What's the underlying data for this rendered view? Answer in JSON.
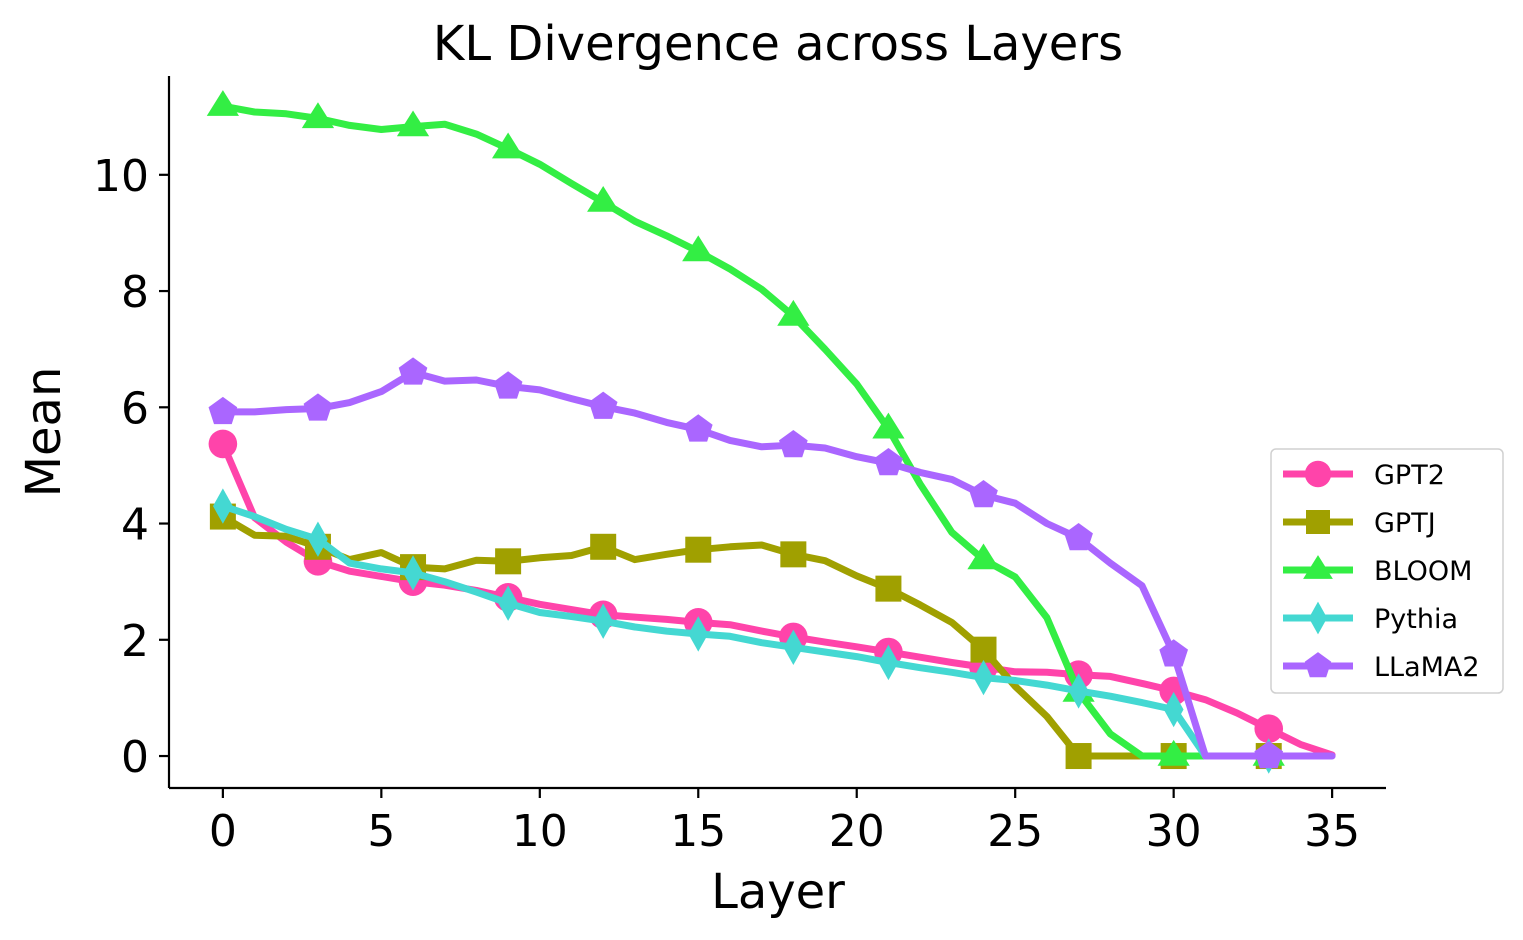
{
  "chart_data": {
    "type": "line",
    "title": "KL Divergence across Layers",
    "xlabel": "Layer",
    "ylabel": "Mean",
    "xlim": [
      -1.7,
      36.7
    ],
    "ylim": [
      -0.55,
      11.7
    ],
    "xticks": [
      0,
      5,
      10,
      15,
      20,
      25,
      30,
      35
    ],
    "yticks": [
      0,
      2,
      4,
      6,
      8,
      10
    ],
    "grid": false,
    "legend_position": "center-right",
    "series": [
      {
        "name": "GPT2",
        "color": "#ff44aa",
        "marker": "circle",
        "x": [
          0,
          1,
          2,
          3,
          4,
          5,
          6,
          7,
          8,
          9,
          10,
          11,
          12,
          13,
          14,
          15,
          16,
          17,
          18,
          19,
          20,
          21,
          22,
          23,
          24,
          25,
          26,
          27,
          28,
          29,
          30,
          31,
          32,
          33,
          34,
          35
        ],
        "y": [
          5.37,
          4.1,
          3.68,
          3.35,
          3.18,
          3.09,
          3.0,
          2.94,
          2.85,
          2.73,
          2.61,
          2.52,
          2.43,
          2.39,
          2.35,
          2.3,
          2.26,
          2.15,
          2.05,
          1.96,
          1.88,
          1.79,
          1.7,
          1.61,
          1.53,
          1.45,
          1.44,
          1.4,
          1.37,
          1.25,
          1.12,
          0.97,
          0.74,
          0.47,
          0.2,
          0.02
        ],
        "marker_every": 3
      },
      {
        "name": "GPTJ",
        "color": "#a0a000",
        "marker": "square",
        "x": [
          0,
          1,
          2,
          3,
          4,
          5,
          6,
          7,
          8,
          9,
          10,
          11,
          12,
          13,
          14,
          15,
          16,
          17,
          18,
          19,
          20,
          21,
          22,
          23,
          24,
          25,
          26,
          27,
          28,
          29,
          30,
          31,
          32,
          33
        ],
        "y": [
          4.12,
          3.8,
          3.78,
          3.6,
          3.38,
          3.5,
          3.25,
          3.22,
          3.37,
          3.35,
          3.41,
          3.45,
          3.6,
          3.38,
          3.47,
          3.55,
          3.6,
          3.63,
          3.47,
          3.36,
          3.1,
          2.88,
          2.6,
          2.3,
          1.83,
          1.2,
          0.68,
          0.0,
          0.0,
          0.0,
          0.0,
          0.0,
          0.0,
          0.0
        ],
        "marker_every": 3
      },
      {
        "name": "BLOOM",
        "color": "#33ee44",
        "marker": "triangle",
        "x": [
          0,
          1,
          2,
          3,
          4,
          5,
          6,
          7,
          8,
          9,
          10,
          11,
          12,
          13,
          14,
          15,
          16,
          17,
          18,
          19,
          20,
          21,
          22,
          23,
          24,
          25,
          26,
          27,
          28,
          29,
          30,
          31,
          32,
          33
        ],
        "y": [
          11.18,
          11.08,
          11.05,
          10.97,
          10.85,
          10.78,
          10.83,
          10.87,
          10.7,
          10.45,
          10.18,
          9.85,
          9.53,
          9.2,
          8.95,
          8.68,
          8.38,
          8.03,
          7.57,
          7.0,
          6.4,
          5.63,
          4.68,
          3.85,
          3.38,
          3.08,
          2.38,
          1.1,
          0.38,
          0.0,
          0.0,
          0.0,
          0.0,
          0.0
        ],
        "marker_every": 3
      },
      {
        "name": "Pythia",
        "color": "#44d8d2",
        "marker": "thin_diamond",
        "x": [
          0,
          1,
          2,
          3,
          4,
          5,
          6,
          7,
          8,
          9,
          10,
          11,
          12,
          13,
          14,
          15,
          16,
          17,
          18,
          19,
          20,
          21,
          22,
          23,
          24,
          25,
          26,
          27,
          28,
          29,
          30,
          31,
          32,
          33
        ],
        "y": [
          4.3,
          4.12,
          3.9,
          3.73,
          3.32,
          3.22,
          3.15,
          3.0,
          2.82,
          2.63,
          2.47,
          2.4,
          2.32,
          2.22,
          2.15,
          2.1,
          2.06,
          1.95,
          1.87,
          1.79,
          1.71,
          1.61,
          1.52,
          1.44,
          1.35,
          1.3,
          1.22,
          1.12,
          1.03,
          0.92,
          0.8,
          0.0,
          0.0,
          0.0
        ],
        "marker_every": 3
      },
      {
        "name": "LLaMA2",
        "color": "#aa66ff",
        "marker": "pentagon",
        "x": [
          0,
          1,
          2,
          3,
          4,
          5,
          6,
          7,
          8,
          9,
          10,
          11,
          12,
          13,
          14,
          15,
          16,
          17,
          18,
          19,
          20,
          21,
          22,
          23,
          24,
          25,
          26,
          27,
          28,
          29,
          30,
          31,
          32,
          33,
          34,
          35
        ],
        "y": [
          5.92,
          5.92,
          5.96,
          5.98,
          6.08,
          6.27,
          6.6,
          6.45,
          6.47,
          6.36,
          6.3,
          6.15,
          6.01,
          5.9,
          5.74,
          5.62,
          5.43,
          5.32,
          5.35,
          5.3,
          5.15,
          5.04,
          4.88,
          4.76,
          4.49,
          4.35,
          4.0,
          3.75,
          3.32,
          2.93,
          1.75,
          0.0,
          0.0,
          0.0,
          0.0,
          0.0
        ],
        "marker_every": 3
      }
    ]
  }
}
